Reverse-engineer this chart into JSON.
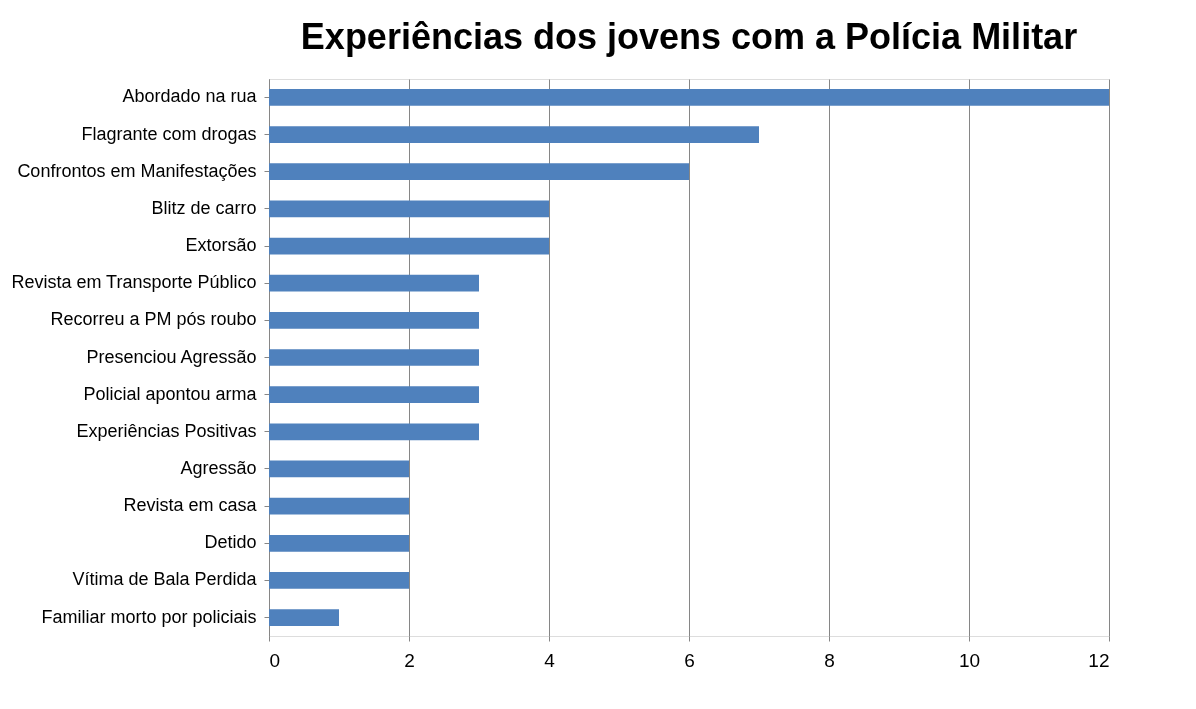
{
  "chart_data": {
    "type": "bar",
    "orientation": "horizontal",
    "title": "Experiências dos jovens com a Polícia Militar",
    "categories": [
      "Abordado na rua",
      "Flagrante com drogas",
      "Confrontos em Manifestações",
      "Blitz de carro",
      "Extorsão",
      "Revista em Transporte Público",
      "Recorreu a PM pós roubo",
      "Presenciou Agressão",
      "Policial apontou arma",
      "Experiências Positivas",
      "Agressão",
      "Revista em casa",
      "Detido",
      "Vítima de Bala Perdida",
      "Familiar morto por policiais"
    ],
    "values": [
      12,
      7,
      6,
      4,
      4,
      3,
      3,
      3,
      3,
      3,
      2,
      2,
      2,
      2,
      1
    ],
    "color": "#4f81bd",
    "xlim": [
      0,
      12
    ],
    "xticks": [
      0,
      2,
      4,
      6,
      8,
      10,
      12
    ],
    "grid": "x"
  }
}
